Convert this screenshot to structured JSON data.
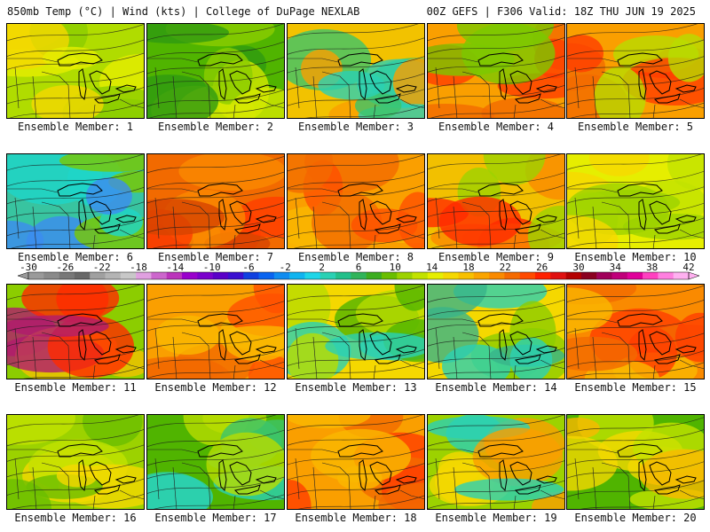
{
  "header": {
    "left_title": "850mb Temp (°C) | Wind (kts) | College of DuPage NEXLAB",
    "right_title": "00Z GEFS | F306 Valid: 18Z THU JUN 19 2025"
  },
  "panel_label_prefix": "Ensemble Member: ",
  "members": [
    {
      "label": "Ensemble Member: 1",
      "palette": [
        "#b0dc00",
        "#e6ee00",
        "#8ccd00",
        "#f5d800"
      ]
    },
    {
      "label": "Ensemble Member: 2",
      "palette": [
        "#50b400",
        "#8ccd00",
        "#2e9a10",
        "#d6e800"
      ]
    },
    {
      "label": "Ensemble Member: 3",
      "palette": [
        "#f2c200",
        "#fa9f00",
        "#3cc46a",
        "#2ad1b4"
      ]
    },
    {
      "label": "Ensemble Member: 4",
      "palette": [
        "#fa9f00",
        "#f26a00",
        "#ff3d00",
        "#7ac800"
      ]
    },
    {
      "label": "Ensemble Member: 5",
      "palette": [
        "#fa9f00",
        "#f26a00",
        "#ff3d00",
        "#b8dc00"
      ]
    },
    {
      "label": "Ensemble Member: 6",
      "palette": [
        "#38c4a0",
        "#1ed6c8",
        "#3c8cf0",
        "#7ac800"
      ]
    },
    {
      "label": "Ensemble Member: 7",
      "palette": [
        "#f26a00",
        "#fa8a00",
        "#ff3d00",
        "#d64400"
      ]
    },
    {
      "label": "Ensemble Member: 8",
      "palette": [
        "#fa9f00",
        "#fab800",
        "#f26a00",
        "#ff5000"
      ]
    },
    {
      "label": "Ensemble Member: 9",
      "palette": [
        "#f2c000",
        "#fa8a00",
        "#ff2a00",
        "#9cd200"
      ]
    },
    {
      "label": "Ensemble Member: 10",
      "palette": [
        "#e6ee00",
        "#c2e200",
        "#9cd200",
        "#f8d800"
      ]
    },
    {
      "label": "Ensemble Member: 11",
      "palette": [
        "#8ccd00",
        "#f2c200",
        "#ff2a00",
        "#b01a6e"
      ]
    },
    {
      "label": "Ensemble Member: 12",
      "palette": [
        "#fa9f00",
        "#f26a00",
        "#ff5000",
        "#fab800"
      ]
    },
    {
      "label": "Ensemble Member: 13",
      "palette": [
        "#f5d800",
        "#b8dc00",
        "#2ad1b4",
        "#50b400"
      ]
    },
    {
      "label": "Ensemble Member: 14",
      "palette": [
        "#f5d800",
        "#8ccd00",
        "#38b48a",
        "#2ad1b4"
      ]
    },
    {
      "label": "Ensemble Member: 15",
      "palette": [
        "#fa8a00",
        "#f26a00",
        "#ff3d00",
        "#fab800"
      ]
    },
    {
      "label": "Ensemble Member: 16",
      "palette": [
        "#9cd200",
        "#c2e200",
        "#f5d800",
        "#6abe00"
      ]
    },
    {
      "label": "Ensemble Member: 17",
      "palette": [
        "#50b400",
        "#3cc46a",
        "#2ad1b4",
        "#b8dc00"
      ]
    },
    {
      "label": "Ensemble Member: 18",
      "palette": [
        "#fa9f00",
        "#f26a00",
        "#ff3d00",
        "#fab800"
      ]
    },
    {
      "label": "Ensemble Member: 19",
      "palette": [
        "#9cd200",
        "#f5d800",
        "#fa9f00",
        "#2ad1b4"
      ]
    },
    {
      "label": "Ensemble Member: 20",
      "palette": [
        "#50b400",
        "#c2e200",
        "#f5d800",
        "#fab800"
      ]
    }
  ],
  "colorbar": {
    "labels": [
      "-30",
      "-26",
      "-22",
      "-18",
      "-14",
      "-10",
      "-6",
      "-2",
      "2",
      "6",
      "10",
      "14",
      "18",
      "22",
      "26",
      "30",
      "34",
      "38",
      "42"
    ],
    "colors": [
      "#9a9a9a",
      "#8a8a8a",
      "#787878",
      "#686868",
      "#a0a0a0",
      "#b4b4b4",
      "#c8c8c8",
      "#e0a0e0",
      "#cc66cc",
      "#bb33bb",
      "#9900cc",
      "#7a00cc",
      "#5a00c8",
      "#3a10d0",
      "#1040e0",
      "#0a64f0",
      "#108cf0",
      "#10b4f0",
      "#1ed6e8",
      "#2ad1b4",
      "#22c08a",
      "#30b45a",
      "#3cad20",
      "#6abe00",
      "#9cd200",
      "#c2e200",
      "#e6ee00",
      "#f5d800",
      "#f8c000",
      "#faa400",
      "#fa8a00",
      "#f56a00",
      "#ff4a00",
      "#ff2000",
      "#e01010",
      "#b40000",
      "#8a0020",
      "#a0005a",
      "#c0007a",
      "#e0009a",
      "#ff40c0",
      "#ff80e0",
      "#ffb0f0"
    ]
  }
}
